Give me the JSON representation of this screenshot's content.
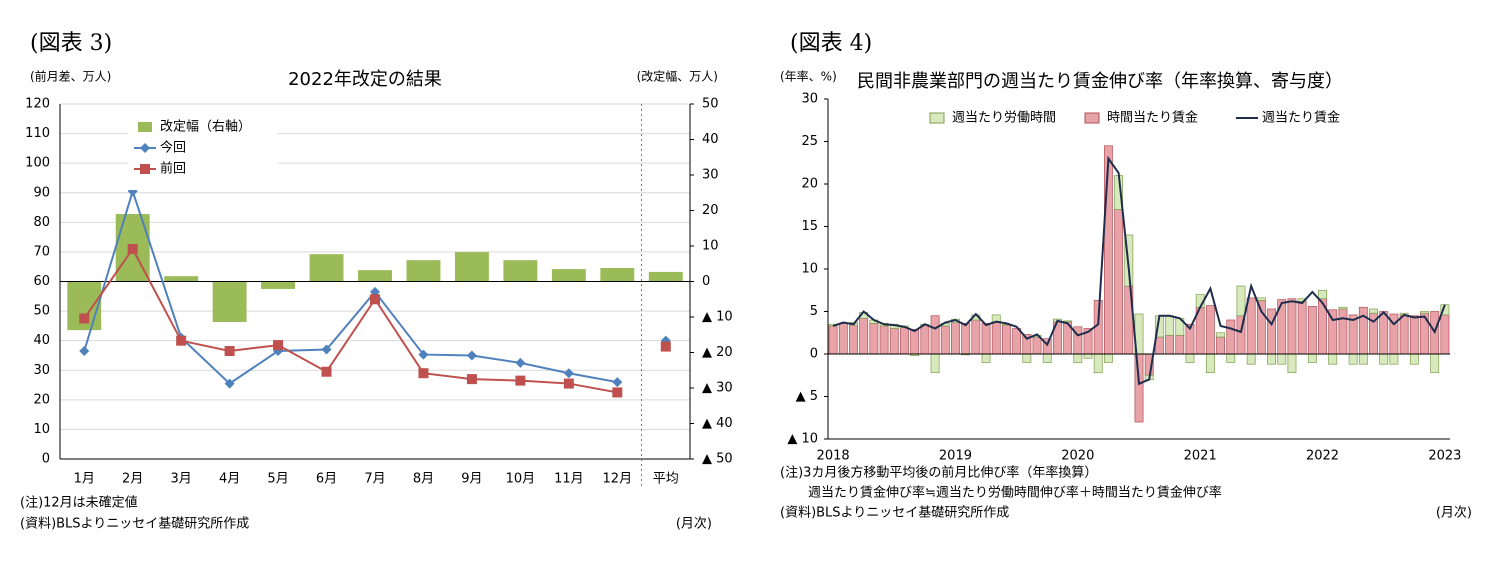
{
  "chart_data": [
    {
      "type": "combo",
      "label": "(図表 3)",
      "title": "2022年改定の結果",
      "ylabel": "(前月差、万人)",
      "y2label": "(改定幅、万人)",
      "categories": [
        "1月",
        "2月",
        "3月",
        "4月",
        "5月",
        "6月",
        "7月",
        "8月",
        "9月",
        "10月",
        "11月",
        "12月",
        "平均"
      ],
      "series": [
        {
          "name": "改定幅（右軸）",
          "type": "bar",
          "axis": "y2",
          "color": "#9bbb59",
          "values": [
            -13.7,
            19,
            1.5,
            -11.4,
            -2.1,
            7.7,
            3.2,
            6,
            8.3,
            6,
            3.5,
            3.8,
            2.7
          ]
        },
        {
          "name": "今回",
          "type": "line",
          "marker": "diamond",
          "color": "#4f81bd",
          "values": [
            36.5,
            90.5,
            41,
            25.5,
            36.5,
            37,
            56.5,
            35.3,
            35,
            32.5,
            29,
            26,
            40
          ]
        },
        {
          "name": "前回",
          "type": "line",
          "marker": "square",
          "color": "#c0504d",
          "values": [
            47.5,
            71,
            40,
            36.5,
            38.5,
            29.5,
            54,
            29,
            27,
            26.5,
            25.5,
            22.5,
            38
          ]
        }
      ],
      "ylim": [
        0,
        120
      ],
      "yticks": [
        0,
        10,
        20,
        30,
        40,
        50,
        60,
        70,
        80,
        90,
        100,
        110,
        120
      ],
      "y2lim": [
        -50,
        50
      ],
      "y2ticks": [
        {
          "value": -50,
          "label": "▲ 50"
        },
        {
          "value": -40,
          "label": "▲ 40"
        },
        {
          "value": -30,
          "label": "▲ 30"
        },
        {
          "value": -20,
          "label": "▲ 20"
        },
        {
          "value": -10,
          "label": "▲ 10"
        },
        0,
        10,
        20,
        30,
        40,
        50
      ],
      "grid": true,
      "average_separated": true,
      "legend": "upper left",
      "notes": [
        "(注)12月は未確定値",
        "(資料)BLSよりニッセイ基礎研究所作成"
      ],
      "x_unit": "(月次)"
    },
    {
      "type": "combo",
      "stacked": true,
      "label": "(図表 4)",
      "title": "民間非農業部門の週当たり賃金伸び率（年率換算、寄与度）",
      "ylabel": "(年率、%)",
      "categories": [
        "2018",
        null,
        null,
        null,
        null,
        null,
        null,
        null,
        null,
        null,
        null,
        null,
        "2019",
        null,
        null,
        null,
        null,
        null,
        null,
        null,
        null,
        null,
        null,
        null,
        "2020",
        null,
        null,
        null,
        null,
        null,
        null,
        null,
        null,
        null,
        null,
        null,
        "2021",
        null,
        null,
        null,
        null,
        null,
        null,
        null,
        null,
        null,
        null,
        null,
        "2022",
        null,
        null,
        null,
        null,
        null,
        null,
        null,
        null,
        null,
        null,
        null,
        "2023"
      ],
      "series": [
        {
          "name": "週当たり労働時間",
          "type": "bar",
          "color": "#d7e9bd",
          "edge_color": "#7f9f4f",
          "values": [
            0.2,
            0,
            0.3,
            0.7,
            0.4,
            0.3,
            0.5,
            0.2,
            -0.2,
            0.1,
            -2.2,
            0.3,
            0.4,
            -0.1,
            0.6,
            -1.0,
            0.8,
            0.1,
            0,
            -1.0,
            0.2,
            -1.0,
            0.3,
            0.1,
            -1.0,
            -0.5,
            -2.2,
            -1.0,
            4.0,
            6.0,
            4.7,
            -0.5,
            2.5,
            2.3,
            2.0,
            -1.0,
            1.5,
            -2.2,
            0.5,
            -1.0,
            3.5,
            -1.2,
            0.3,
            -1.2,
            -1.2,
            -2.2,
            0.3,
            -1.0,
            1.0,
            -1.2,
            0.2,
            -1.2,
            -1.2,
            0.5,
            -1.2,
            -1.2,
            0.2,
            -1.2,
            0.2,
            -2.2,
            1.2
          ]
        },
        {
          "name": "時間当たり賃金",
          "type": "bar",
          "color": "#e8a3a8",
          "edge_color": "#b0505a",
          "values": [
            3.3,
            3.6,
            3.4,
            4.2,
            3.6,
            3.3,
            3.0,
            3.1,
            2.9,
            3.4,
            4.5,
            3.3,
            3.7,
            3.6,
            4.0,
            3.6,
            3.8,
            3.4,
            3.0,
            2.3,
            2.0,
            1.8,
            3.8,
            3.8,
            3.2,
            3.0,
            6.3,
            24.5,
            17.0,
            8.0,
            -8.0,
            -2.5,
            2.0,
            2.2,
            2.2,
            3.5,
            5.5,
            5.7,
            2.0,
            4.0,
            4.5,
            6.6,
            6.3,
            5.3,
            6.4,
            6.5,
            6.2,
            5.6,
            6.5,
            5.2,
            5.3,
            4.6,
            5.5,
            4.8,
            5.0,
            4.7,
            4.6,
            4.5,
            4.8,
            5.0,
            4.6
          ]
        },
        {
          "name": "週当たり賃金",
          "type": "line",
          "color": "#1f2d4d",
          "values": [
            3.3,
            3.7,
            3.5,
            5.0,
            4.0,
            3.5,
            3.4,
            3.2,
            2.7,
            3.5,
            3.0,
            3.7,
            4.0,
            3.4,
            4.7,
            3.4,
            3.8,
            3.6,
            3.2,
            1.8,
            2.3,
            1.1,
            3.9,
            3.6,
            2.2,
            2.6,
            3.5,
            23.0,
            21.3,
            10.0,
            -3.5,
            -3.0,
            4.5,
            4.5,
            4.2,
            3.0,
            5.5,
            7.7,
            3.3,
            3.0,
            2.6,
            8.0,
            5.0,
            3.5,
            6.0,
            6.2,
            6.0,
            7.3,
            6.0,
            4.0,
            4.2,
            4.0,
            4.5,
            3.8,
            4.9,
            3.5,
            4.6,
            4.3,
            4.4,
            2.6,
            5.8
          ]
        }
      ],
      "ylim": [
        -10,
        30
      ],
      "yticks": [
        {
          "value": -10,
          "label": "▲ 10"
        },
        {
          "value": -5,
          "label": "▲ 5"
        },
        0,
        5,
        10,
        15,
        20,
        25,
        30
      ],
      "grid": false,
      "legend": "upper center",
      "notes": [
        "(注)3カ月後方移動平均後の前月比伸び率（年率換算）",
        "週当たり賃金伸び率≒週当たり労働時間伸び率＋時間当たり賃金伸び率",
        "(資料)BLSよりニッセイ基礎研究所作成"
      ],
      "x_unit": "(月次)"
    }
  ]
}
